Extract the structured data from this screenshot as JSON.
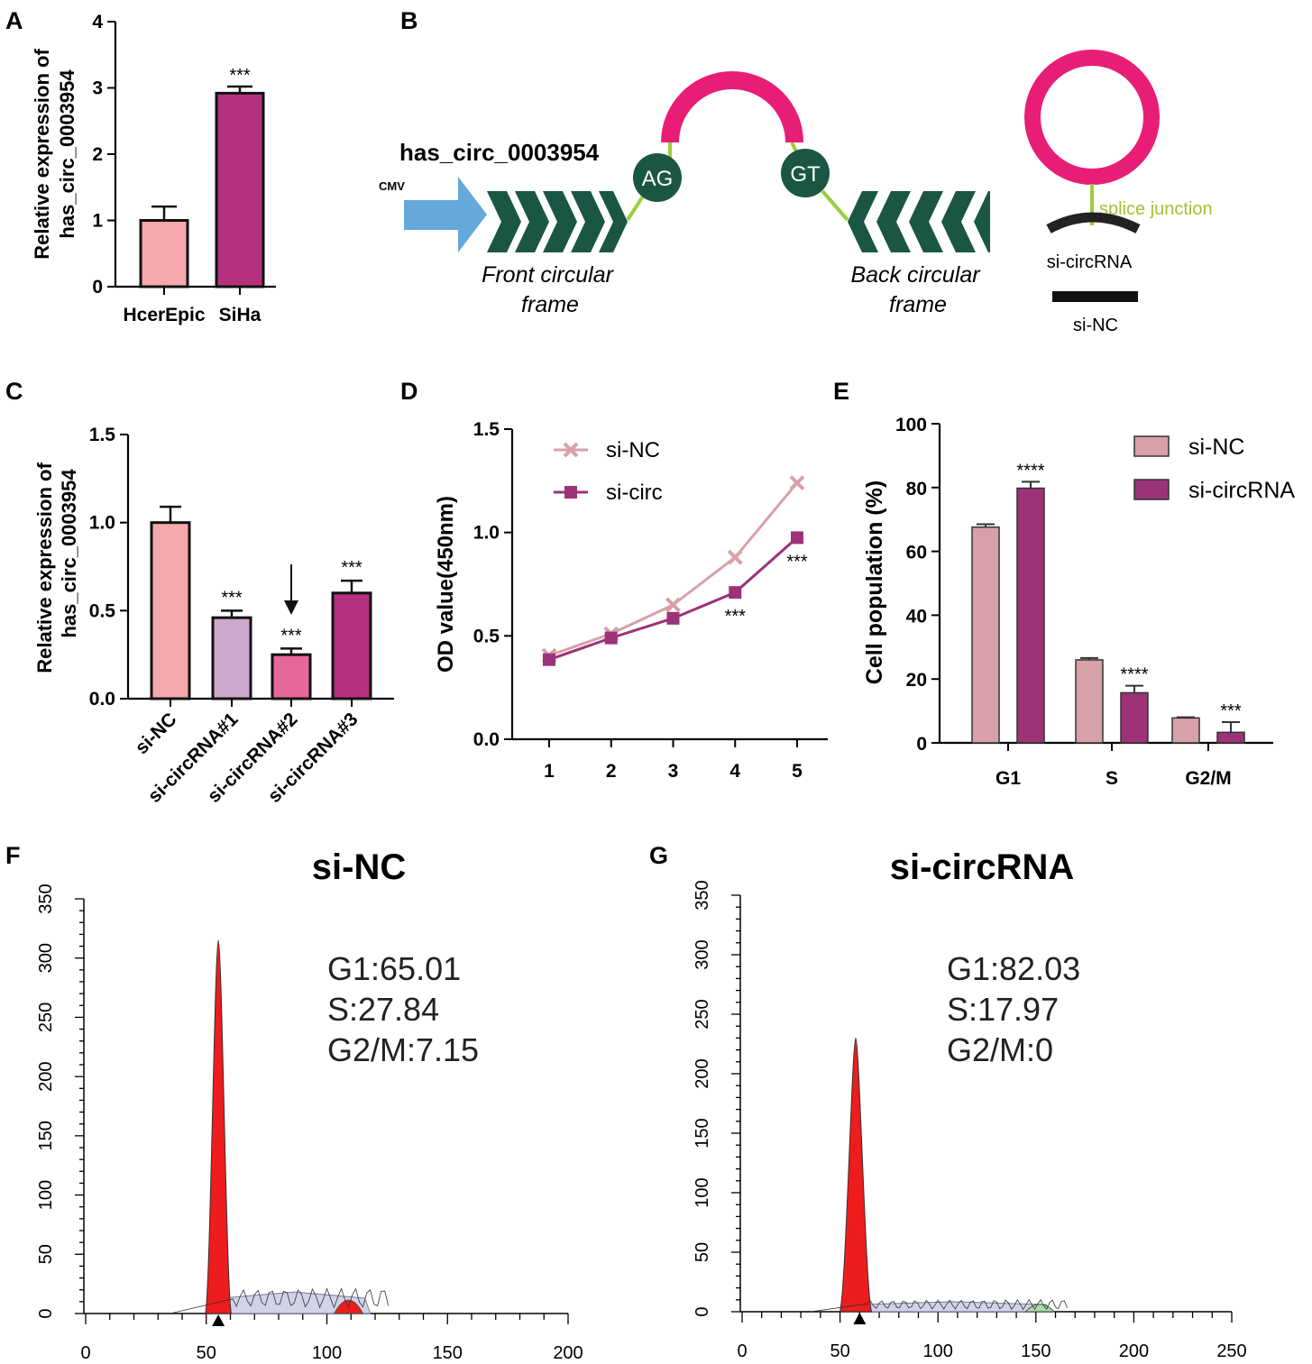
{
  "panel_letters": [
    "A",
    "B",
    "C",
    "D",
    "E",
    "F",
    "G"
  ],
  "colors": {
    "light_pink": "#F4A8AC",
    "magenta": "#B5307F",
    "lilac": "#CCA8CC",
    "pink": "#E8679A",
    "rose": "#D8A0A8",
    "plum": "#9C3278",
    "hot_pink": "#E81E76",
    "dark_green": "#1B5645",
    "lime": "#9ACD3C",
    "blue": "#64A8DC",
    "red": "#EE1C1C",
    "green_fill": "#A8DCA8"
  },
  "diagram": {
    "title": "has_circ_0003954",
    "promoter": "CMV",
    "junction_left": "AG",
    "junction_right": "GT",
    "front_frame": [
      "Front circular",
      "frame"
    ],
    "back_frame": [
      "Back circular",
      "frame"
    ],
    "splice_label": "splice junction",
    "sicirc_label": "si-circRNA",
    "sinc_label": "si-NC"
  },
  "chart_data": [
    {
      "id": "A",
      "type": "bar",
      "title": "",
      "ylabel": [
        "Relative expression of",
        "has_circ_0003954"
      ],
      "xlabel": "",
      "categories": [
        "HcerEpic",
        "SiHa"
      ],
      "values": [
        1.0,
        2.92
      ],
      "errors": [
        0.21,
        0.1
      ],
      "colors": [
        "#F4A8AC",
        "#B5307F"
      ],
      "annotations": [
        "",
        "***"
      ],
      "ylim": [
        0,
        4
      ],
      "yticks": [
        "0",
        "1",
        "2",
        "3",
        "4"
      ]
    },
    {
      "id": "C",
      "type": "bar",
      "title": "",
      "ylabel": [
        "Relative expression of",
        "has_circ_0003954"
      ],
      "xlabel": "",
      "categories": [
        "si-NC",
        "si-circRNA#1",
        "si-circRNA#2",
        "si-circRNA#3"
      ],
      "values": [
        1.0,
        0.46,
        0.25,
        0.6
      ],
      "errors": [
        0.09,
        0.04,
        0.035,
        0.07
      ],
      "colors": [
        "#F4A8AC",
        "#CCA8CC",
        "#E8679A",
        "#B5307F"
      ],
      "annotations": [
        "",
        "***",
        "***",
        "***"
      ],
      "arrow_on": "si-circRNA#2",
      "ylim": [
        0,
        1.5
      ],
      "yticks": [
        "0.0",
        "0.5",
        "1.0",
        "1.5"
      ]
    },
    {
      "id": "D",
      "type": "line",
      "title": "",
      "ylabel": "OD value(450nm)",
      "xlabel": "",
      "x": [
        1,
        2,
        3,
        4,
        5
      ],
      "xticks": [
        "1",
        "2",
        "3",
        "4",
        "5"
      ],
      "series": [
        {
          "name": "si-NC",
          "values": [
            0.405,
            0.51,
            0.65,
            0.88,
            1.24
          ],
          "color": "#D8A0A8",
          "marker": "x"
        },
        {
          "name": "si-circ",
          "values": [
            0.385,
            0.49,
            0.585,
            0.71,
            0.975
          ],
          "color": "#9C3278",
          "marker": "square"
        }
      ],
      "annotations": [
        {
          "x": 4,
          "text": "***"
        },
        {
          "x": 5,
          "text": "***"
        }
      ],
      "ylim": [
        0,
        1.5
      ],
      "yticks": [
        "0.0",
        "0.5",
        "1.0",
        "1.5"
      ]
    },
    {
      "id": "E",
      "type": "bar",
      "title": "",
      "ylabel": "Cell population (%)",
      "xlabel": "",
      "categories": [
        "G1",
        "S",
        "G2/M"
      ],
      "series": [
        {
          "name": "si-NC",
          "values": [
            67.6,
            26.0,
            7.8
          ],
          "errors": [
            0.9,
            0.6,
            0.2
          ],
          "color": "#D8A0A8"
        },
        {
          "name": "si-circRNA",
          "values": [
            79.8,
            15.7,
            3.3
          ],
          "errors": [
            2.0,
            2.2,
            3.2
          ],
          "color": "#9C3278"
        }
      ],
      "annotations": [
        "****",
        "****",
        "***"
      ],
      "legend": "top-right",
      "ylim": [
        0,
        100
      ],
      "yticks": [
        "0",
        "20",
        "40",
        "60",
        "80",
        "100"
      ]
    },
    {
      "id": "F",
      "type": "area",
      "title": "si-NC",
      "xlim": [
        0,
        200
      ],
      "ylim": [
        0,
        350
      ],
      "xticks": [
        "0",
        "50",
        "100",
        "150",
        "200"
      ],
      "yticks": [
        "0",
        "50",
        "100",
        "150",
        "200",
        "250",
        "300",
        "350"
      ],
      "g1_peak": {
        "x": 55,
        "height": 315
      },
      "g2_peak": {
        "x": 109,
        "height": 18
      },
      "s_level": 13,
      "s_range": [
        55,
        118
      ],
      "marker_x": 55,
      "stats": [
        "G1:65.01",
        "S:27.84",
        "G2/M:7.15"
      ]
    },
    {
      "id": "G",
      "type": "area",
      "title": "si-circRNA",
      "xlim": [
        0,
        250
      ],
      "ylim": [
        0,
        350
      ],
      "xticks": [
        "0",
        "50",
        "100",
        "150",
        "200",
        "250"
      ],
      "yticks": [
        "0",
        "50",
        "100",
        "150",
        "200",
        "250",
        "300",
        "350"
      ],
      "g1_peak": {
        "x": 58,
        "height": 230
      },
      "g2_peak": {
        "x": 152,
        "height": 8
      },
      "s_level": 6,
      "s_range": [
        58,
        158
      ],
      "marker_x": 60,
      "stats": [
        "G1:82.03",
        "S:17.97",
        "G2/M:0"
      ]
    }
  ]
}
